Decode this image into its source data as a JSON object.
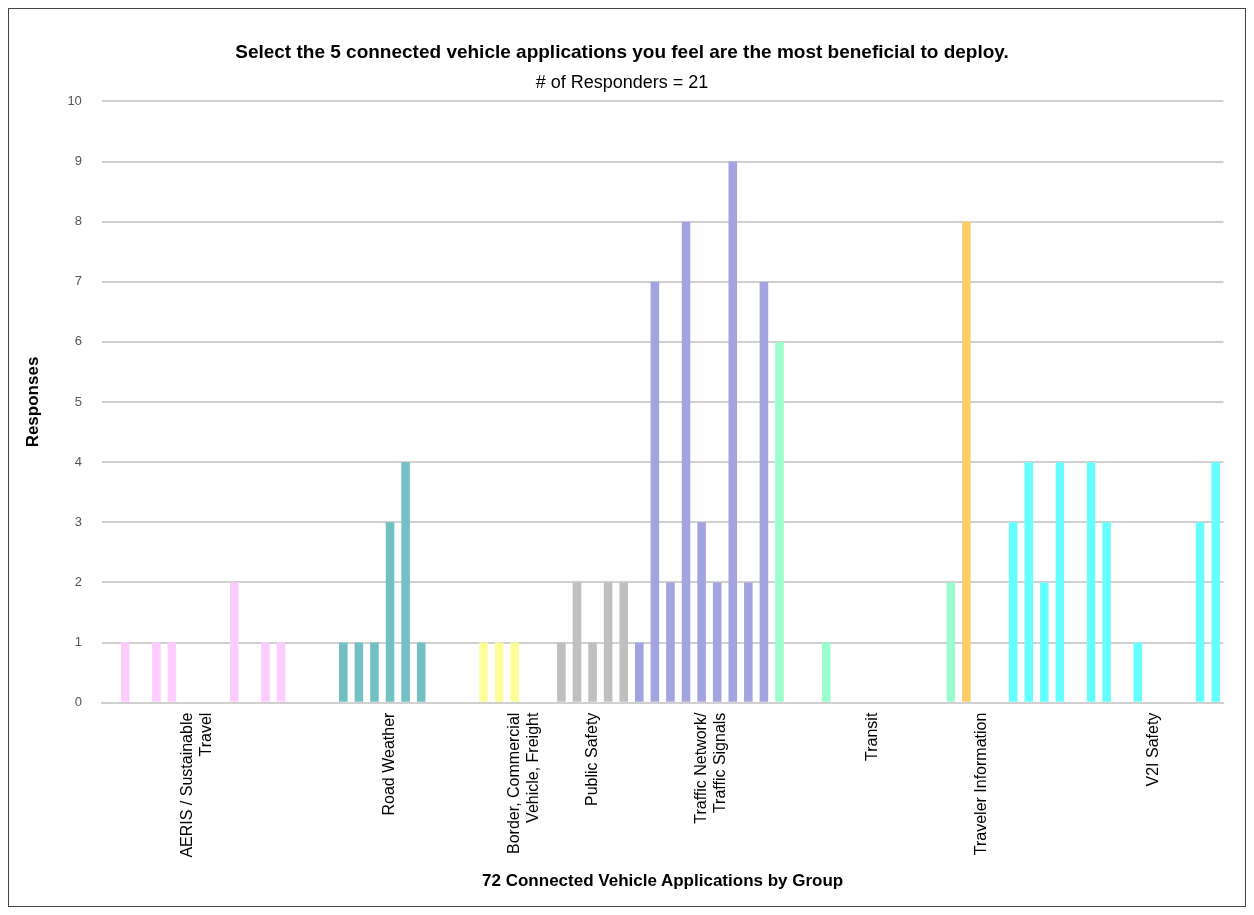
{
  "chart_data": {
    "type": "bar",
    "title": "Select the 5 connected vehicle applications you feel are the most beneficial to deploy.",
    "subtitle": "# of Responders = 21",
    "xlabel": "72 Connected Vehicle Applications by Group",
    "ylabel": "Responses",
    "categories": [
      null,
      null,
      null,
      null,
      null,
      "AERIS / Sustainable Travel",
      null,
      null,
      null,
      null,
      null,
      null,
      null,
      null,
      null,
      null,
      null,
      null,
      "Road Weather",
      null,
      null,
      null,
      null,
      null,
      null,
      null,
      "Border, Commercial Vehicle, Freight",
      null,
      null,
      null,
      null,
      "Public Safety",
      null,
      null,
      null,
      null,
      null,
      null,
      "Traffic Network/ Traffic Signals",
      null,
      null,
      null,
      null,
      null,
      null,
      null,
      null,
      null,
      null,
      "Transit",
      null,
      null,
      null,
      null,
      null,
      null,
      "Traveler Information",
      null,
      null,
      null,
      null,
      null,
      null,
      null,
      null,
      null,
      null,
      "V2I Safety",
      null,
      null,
      null,
      null
    ],
    "values": [
      0,
      1,
      0,
      1,
      1,
      0,
      0,
      0,
      2,
      0,
      1,
      1,
      0,
      0,
      0,
      1,
      1,
      1,
      3,
      4,
      1,
      0,
      0,
      0,
      1,
      1,
      1,
      0,
      0,
      1,
      2,
      1,
      2,
      2,
      1,
      7,
      2,
      8,
      3,
      2,
      9,
      2,
      7,
      6,
      0,
      0,
      1,
      0,
      0,
      0,
      0,
      0,
      0,
      0,
      2,
      8,
      0,
      0,
      3,
      4,
      2,
      4,
      0,
      4,
      3,
      0,
      1,
      0,
      0,
      0,
      3,
      4
    ],
    "colors": [
      "#ffccff",
      "#ffccff",
      "#ffccff",
      "#ffccff",
      "#ffccff",
      "#ffccff",
      "#ffccff",
      "#ffccff",
      "#ffccff",
      "#ffccff",
      "#ffccff",
      "#ffccff",
      "#72bfc4",
      "#72bfc4",
      "#72bfc4",
      "#72bfc4",
      "#72bfc4",
      "#72bfc4",
      "#72bfc4",
      "#72bfc4",
      "#72bfc4",
      "#ffff99",
      "#ffff99",
      "#ffff99",
      "#ffff99",
      "#ffff99",
      "#ffff99",
      "#bfbfbf",
      "#bfbfbf",
      "#bfbfbf",
      "#bfbfbf",
      "#bfbfbf",
      "#bfbfbf",
      "#bfbfbf",
      "#a3a3e0",
      "#a3a3e0",
      "#a3a3e0",
      "#a3a3e0",
      "#a3a3e0",
      "#a3a3e0",
      "#a3a3e0",
      "#a3a3e0",
      "#a3a3e0",
      "#99ffcc",
      "#99ffcc",
      "#99ffcc",
      "#99ffcc",
      "#99ffcc",
      "#99ffcc",
      "#99ffcc",
      "#99ffcc",
      "#99ffcc",
      "#99ffcc",
      "#99ffcc",
      "#99ffcc",
      "#ffcc66",
      "#66ffff",
      "#66ffff",
      "#66ffff",
      "#66ffff",
      "#66ffff",
      "#66ffff",
      "#66ffff",
      "#66ffff",
      "#66ffff",
      "#66ffff",
      "#66ffff",
      "#66ffff",
      "#66ffff",
      "#66ffff",
      "#66ffff",
      "#66ffff"
    ],
    "ylim": [
      0,
      10
    ],
    "yticks": [
      0,
      1,
      2,
      3,
      4,
      5,
      6,
      7,
      8,
      9,
      10
    ],
    "grid": "y",
    "legend": false
  }
}
